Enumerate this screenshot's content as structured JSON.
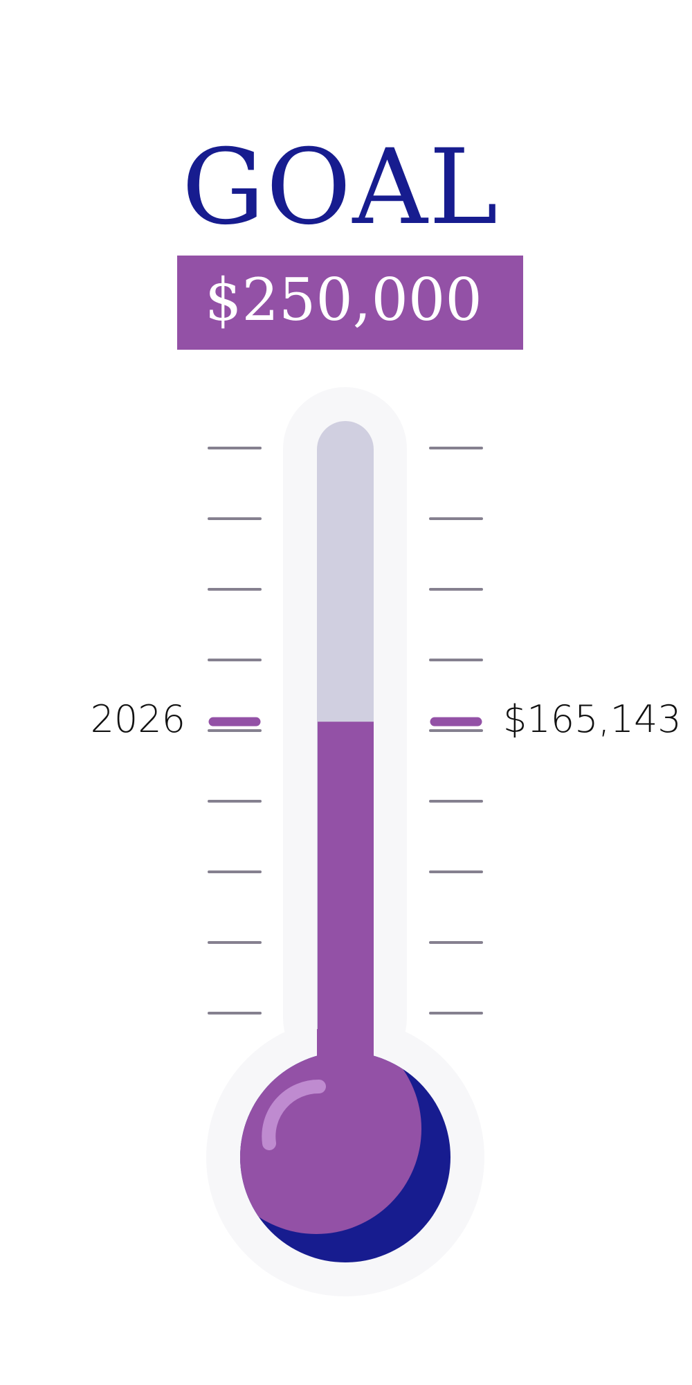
{
  "title": "GOAL",
  "goal_label": "$250,000",
  "colors": {
    "brand_navy": "#171c8f",
    "fill_purple": "#9351a6",
    "empty": "#d0cfe0",
    "outer": "#f7f7f9",
    "tick": "#85808f",
    "highlight": "#bf8bd0"
  },
  "chart_data": {
    "type": "bar",
    "categories": [
      "2026"
    ],
    "values": [
      165143
    ],
    "value_label": "$165,143",
    "ylim": [
      0,
      250000
    ],
    "goal": 250000
  }
}
